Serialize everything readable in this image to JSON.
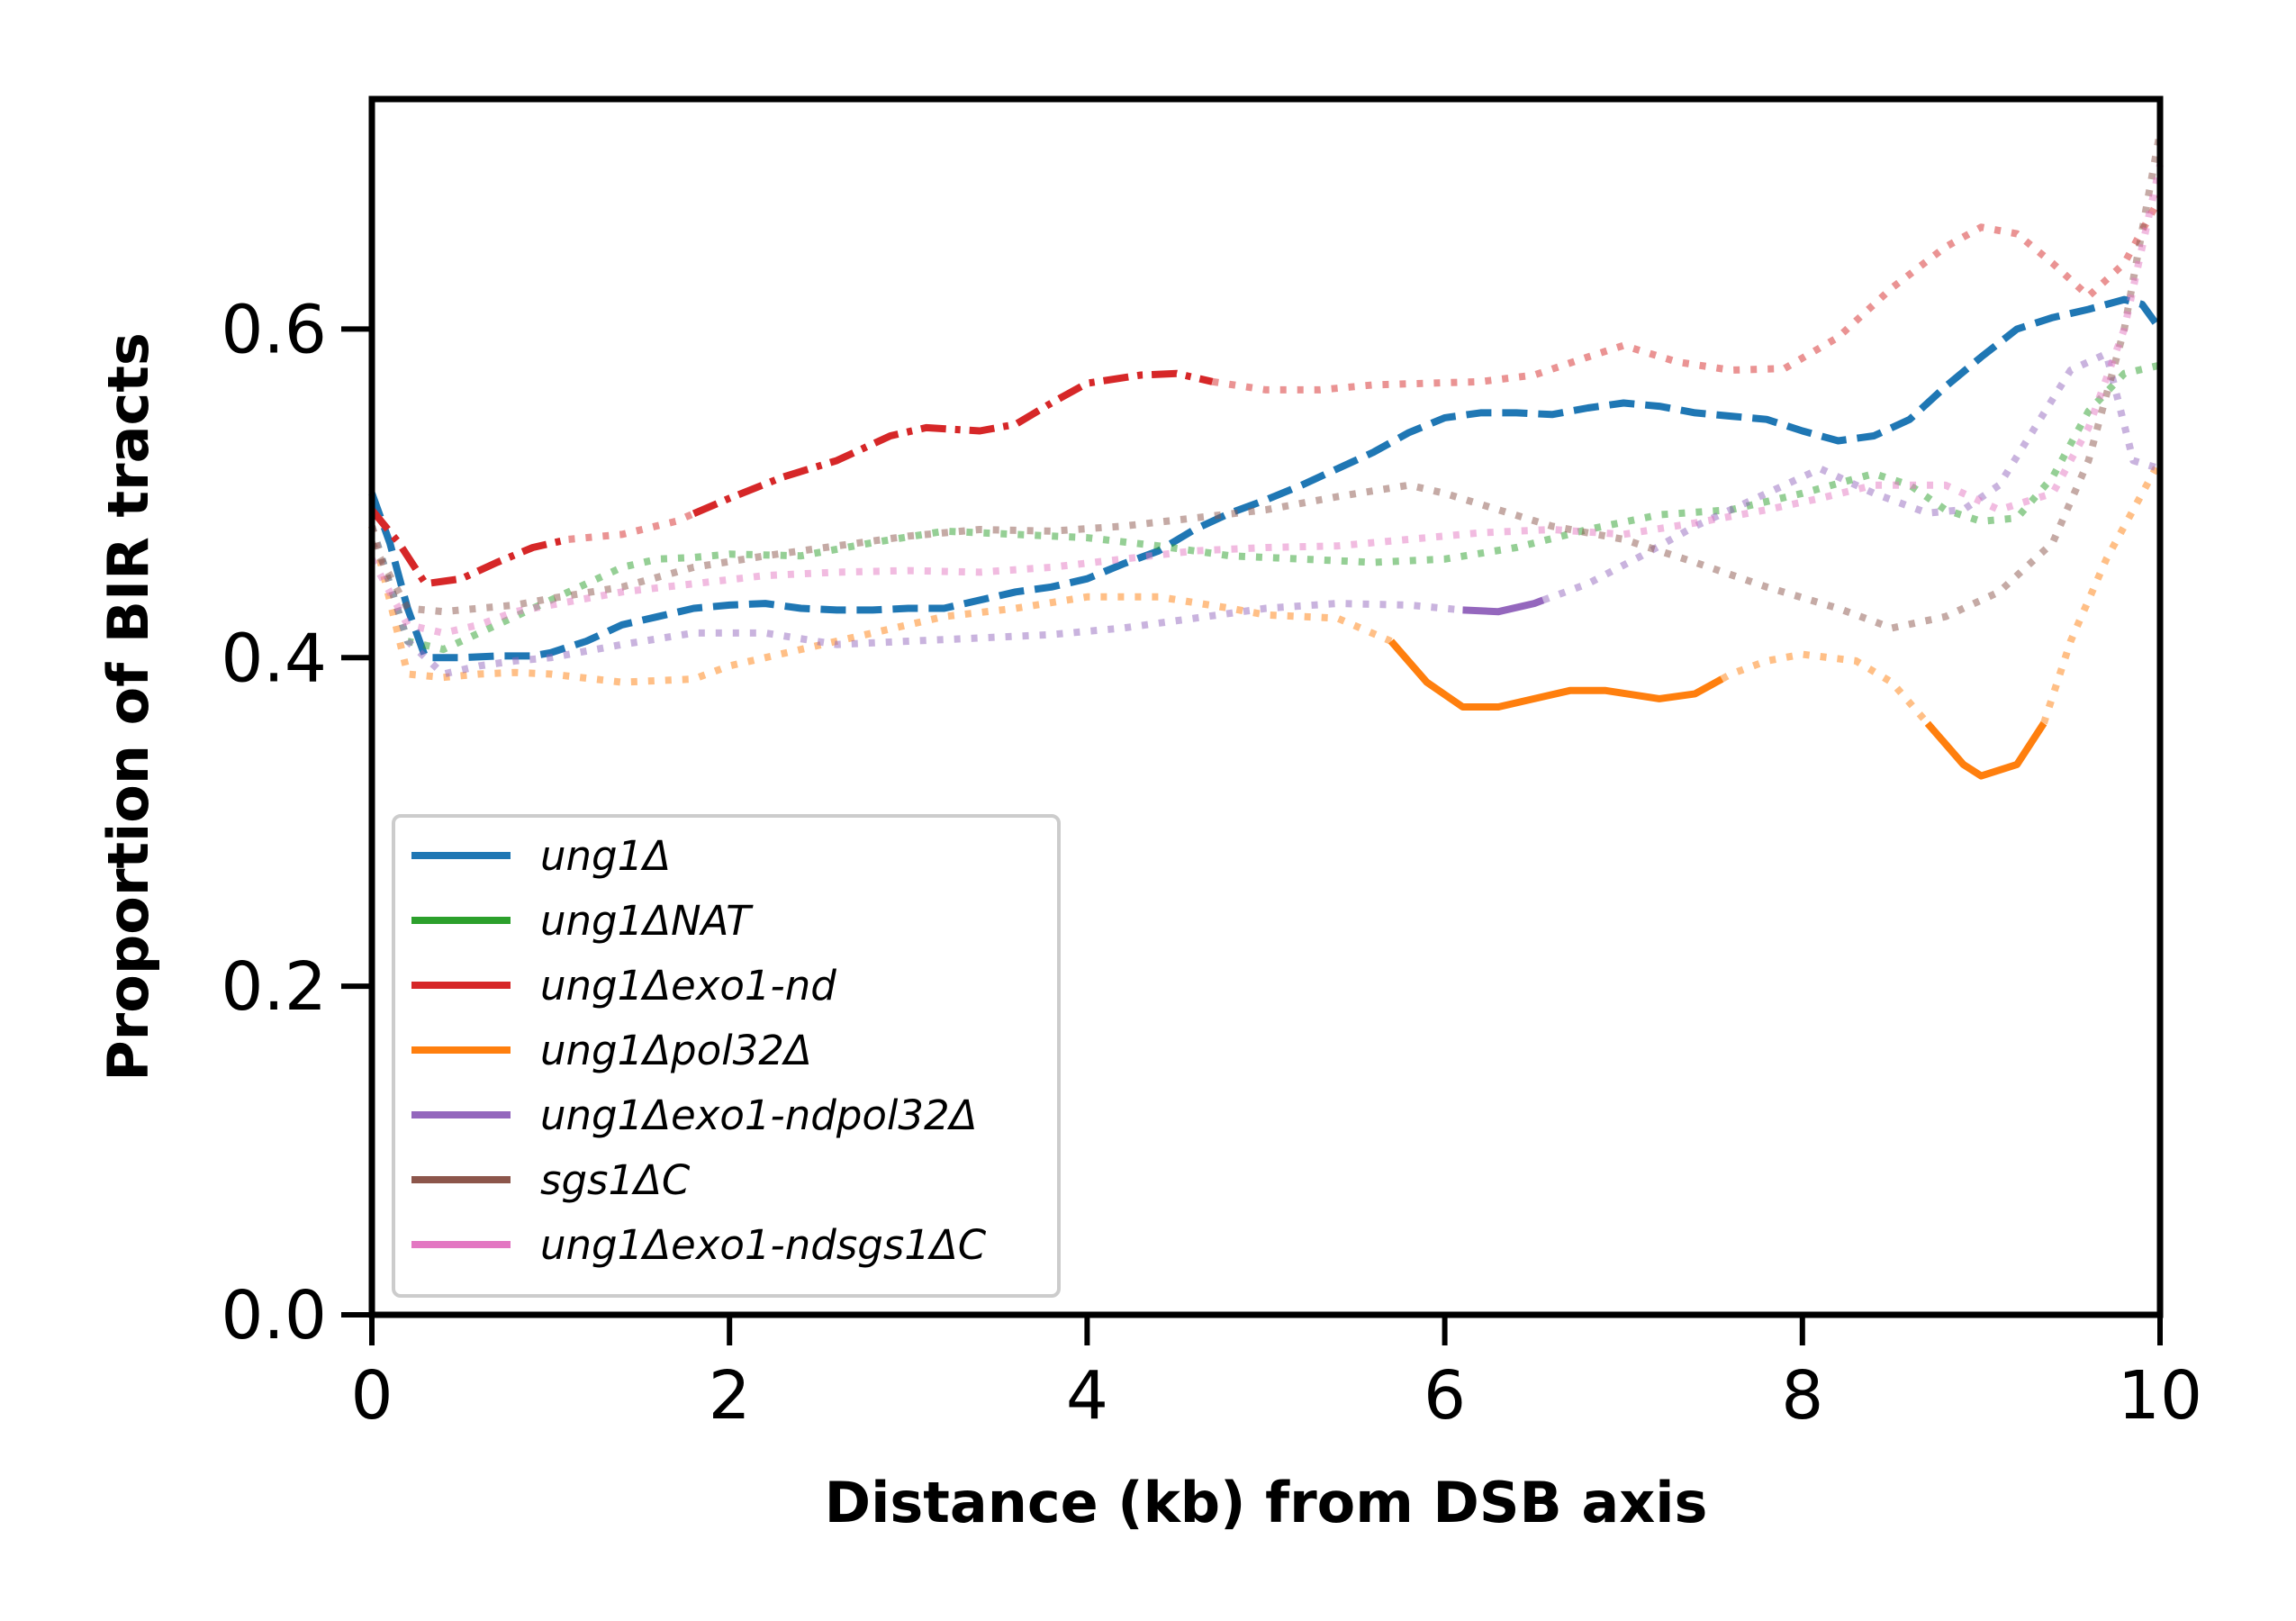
{
  "chart_data": {
    "type": "line",
    "title": "",
    "xlabel": "Distance (kb) from DSB axis",
    "ylabel": "Proportion of BIR tracts",
    "xlim": [
      0,
      10
    ],
    "ylim": [
      0,
      0.74
    ],
    "xticks": [
      0,
      2,
      4,
      6,
      8,
      10
    ],
    "xtick_labels": [
      "0",
      "2",
      "4",
      "6",
      "8",
      "10"
    ],
    "yticks": [
      0.0,
      0.2,
      0.4,
      0.6
    ],
    "ytick_labels": [
      "0.0",
      "0.2",
      "0.4",
      "0.6"
    ],
    "grid": false,
    "legend_position": "lower-left",
    "series": [
      {
        "name": "ung1Δ",
        "color": "#1f77b4",
        "x": [
          0,
          0.1,
          0.2,
          0.3,
          0.5,
          0.7,
          0.9,
          1.0,
          1.2,
          1.4,
          1.6,
          1.8,
          2.0,
          2.2,
          2.4,
          2.6,
          2.8,
          3.0,
          3.2,
          3.4,
          3.6,
          3.8,
          4.0,
          4.2,
          4.4,
          4.6,
          4.8,
          5.0,
          5.2,
          5.4,
          5.6,
          5.8,
          6.0,
          6.2,
          6.4,
          6.6,
          6.8,
          7.0,
          7.2,
          7.4,
          7.6,
          7.8,
          8.0,
          8.2,
          8.4,
          8.6,
          8.8,
          9.0,
          9.2,
          9.4,
          9.6,
          9.8,
          9.9,
          10.0
        ],
        "y": [
          0.5,
          0.47,
          0.43,
          0.4,
          0.4,
          0.401,
          0.401,
          0.403,
          0.41,
          0.42,
          0.425,
          0.43,
          0.432,
          0.433,
          0.43,
          0.429,
          0.429,
          0.43,
          0.43,
          0.435,
          0.44,
          0.443,
          0.448,
          0.457,
          0.465,
          0.478,
          0.488,
          0.496,
          0.505,
          0.515,
          0.525,
          0.537,
          0.546,
          0.549,
          0.549,
          0.548,
          0.552,
          0.555,
          0.553,
          0.549,
          0.547,
          0.545,
          0.538,
          0.532,
          0.535,
          0.545,
          0.565,
          0.583,
          0.6,
          0.607,
          0.612,
          0.618,
          0.615,
          0.6
        ],
        "segments": [
          {
            "range": [
              0,
              10
            ],
            "style": "dashed",
            "alpha": 1.0
          }
        ]
      },
      {
        "name": "ung1ΔNAT",
        "color": "#2ca02c",
        "x": [
          0,
          0.2,
          0.4,
          0.6,
          0.8,
          1.0,
          1.2,
          1.4,
          1.6,
          1.8,
          2.0,
          2.4,
          2.8,
          3.2,
          3.6,
          4.0,
          4.4,
          4.8,
          5.2,
          5.6,
          6.0,
          6.4,
          6.8,
          7.2,
          7.6,
          8.0,
          8.4,
          8.6,
          8.8,
          9.0,
          9.2,
          9.4,
          9.6,
          9.8,
          10.0
        ],
        "y": [
          0.48,
          0.41,
          0.405,
          0.415,
          0.425,
          0.435,
          0.445,
          0.455,
          0.46,
          0.461,
          0.463,
          0.462,
          0.47,
          0.477,
          0.475,
          0.473,
          0.468,
          0.462,
          0.46,
          0.458,
          0.46,
          0.467,
          0.478,
          0.487,
          0.49,
          0.5,
          0.512,
          0.505,
          0.49,
          0.483,
          0.485,
          0.51,
          0.55,
          0.573,
          0.578
        ],
        "segments": [
          {
            "range": [
              0,
              10
            ],
            "style": "dotted",
            "alpha": 0.5
          }
        ]
      },
      {
        "name": "ung1Δexo1-nd",
        "color": "#d62728",
        "x": [
          0,
          0.15,
          0.3,
          0.5,
          0.7,
          0.9,
          1.1,
          1.4,
          1.7,
          2.0,
          2.3,
          2.6,
          2.9,
          3.1,
          3.4,
          3.6,
          3.8,
          4.0,
          4.3,
          4.5,
          4.7,
          5.0,
          5.3,
          5.6,
          5.9,
          6.2,
          6.5,
          6.8,
          7.0,
          7.3,
          7.6,
          7.9,
          8.2,
          8.5,
          8.8,
          9.0,
          9.2,
          9.4,
          9.6,
          9.8,
          10.0
        ],
        "y": [
          0.49,
          0.47,
          0.445,
          0.448,
          0.458,
          0.467,
          0.472,
          0.475,
          0.483,
          0.497,
          0.51,
          0.52,
          0.535,
          0.54,
          0.538,
          0.542,
          0.555,
          0.567,
          0.572,
          0.573,
          0.568,
          0.563,
          0.563,
          0.566,
          0.567,
          0.568,
          0.572,
          0.583,
          0.59,
          0.58,
          0.575,
          0.576,
          0.595,
          0.625,
          0.65,
          0.662,
          0.658,
          0.64,
          0.62,
          0.64,
          0.68
        ],
        "segments": [
          {
            "range": [
              0,
              1.1
            ],
            "style": "dashdot",
            "alpha": 1.0
          },
          {
            "range": [
              1.1,
              1.8
            ],
            "style": "dotted",
            "alpha": 0.5
          },
          {
            "range": [
              1.8,
              4.7
            ],
            "style": "dashdot",
            "alpha": 1.0
          },
          {
            "range": [
              4.7,
              10
            ],
            "style": "dotted",
            "alpha": 0.5
          }
        ]
      },
      {
        "name": "ung1Δpol32Δ",
        "color": "#ff7f0e",
        "x": [
          0,
          0.2,
          0.4,
          0.6,
          0.8,
          1.0,
          1.4,
          1.8,
          2.0,
          2.4,
          2.8,
          3.2,
          3.6,
          4.0,
          4.4,
          4.8,
          5.0,
          5.4,
          5.7,
          5.9,
          6.1,
          6.3,
          6.5,
          6.7,
          6.9,
          7.2,
          7.4,
          7.6,
          7.8,
          8.0,
          8.3,
          8.5,
          8.7,
          8.9,
          9.0,
          9.2,
          9.35,
          9.5,
          9.7,
          10.0
        ],
        "y": [
          0.48,
          0.39,
          0.388,
          0.39,
          0.391,
          0.39,
          0.385,
          0.387,
          0.395,
          0.405,
          0.415,
          0.425,
          0.43,
          0.437,
          0.437,
          0.43,
          0.426,
          0.424,
          0.41,
          0.385,
          0.37,
          0.37,
          0.375,
          0.38,
          0.38,
          0.375,
          0.378,
          0.39,
          0.398,
          0.402,
          0.398,
          0.385,
          0.36,
          0.335,
          0.328,
          0.335,
          0.36,
          0.41,
          0.46,
          0.52
        ],
        "segments": [
          {
            "range": [
              0,
              5.7
            ],
            "style": "dotted",
            "alpha": 0.5
          },
          {
            "range": [
              5.7,
              7.55
            ],
            "style": "solid",
            "alpha": 1.0
          },
          {
            "range": [
              7.55,
              8.7
            ],
            "style": "dotted",
            "alpha": 0.5
          },
          {
            "range": [
              8.7,
              9.35
            ],
            "style": "solid",
            "alpha": 1.0
          },
          {
            "range": [
              9.35,
              10
            ],
            "style": "dotted",
            "alpha": 0.5
          }
        ]
      },
      {
        "name": "ung1Δexo1-ndpol32Δ",
        "color": "#9467bd",
        "x": [
          0,
          0.2,
          0.4,
          0.6,
          0.8,
          1.0,
          1.4,
          1.8,
          2.2,
          2.6,
          3.0,
          3.4,
          3.8,
          4.2,
          4.6,
          5.0,
          5.4,
          5.8,
          6.1,
          6.3,
          6.5,
          6.8,
          7.1,
          7.4,
          7.8,
          8.1,
          8.4,
          8.7,
          8.9,
          9.1,
          9.3,
          9.5,
          9.7,
          9.85,
          10.0
        ],
        "y": [
          0.48,
          0.41,
          0.39,
          0.395,
          0.398,
          0.4,
          0.408,
          0.415,
          0.415,
          0.408,
          0.41,
          0.412,
          0.414,
          0.418,
          0.424,
          0.43,
          0.433,
          0.432,
          0.429,
          0.428,
          0.433,
          0.445,
          0.462,
          0.48,
          0.5,
          0.515,
          0.5,
          0.488,
          0.49,
          0.505,
          0.54,
          0.575,
          0.585,
          0.52,
          0.515
        ],
        "segments": [
          {
            "range": [
              0,
              6.1
            ],
            "style": "dotted",
            "alpha": 0.5
          },
          {
            "range": [
              6.1,
              6.55
            ],
            "style": "solid",
            "alpha": 1.0
          },
          {
            "range": [
              6.55,
              10
            ],
            "style": "dotted",
            "alpha": 0.5
          }
        ]
      },
      {
        "name": "sgs1ΔC",
        "color": "#8c564b",
        "x": [
          0,
          0.2,
          0.4,
          0.6,
          0.8,
          1.0,
          1.4,
          1.8,
          2.2,
          2.6,
          3.0,
          3.4,
          3.8,
          4.2,
          4.6,
          5.0,
          5.4,
          5.8,
          6.0,
          6.3,
          6.6,
          7.0,
          7.4,
          7.8,
          8.2,
          8.5,
          8.8,
          9.1,
          9.4,
          9.6,
          9.8,
          10.0
        ],
        "y": [
          0.47,
          0.43,
          0.428,
          0.43,
          0.432,
          0.436,
          0.443,
          0.455,
          0.462,
          0.468,
          0.474,
          0.478,
          0.477,
          0.48,
          0.485,
          0.49,
          0.498,
          0.505,
          0.5,
          0.49,
          0.48,
          0.472,
          0.458,
          0.443,
          0.43,
          0.418,
          0.425,
          0.44,
          0.47,
          0.52,
          0.6,
          0.72
        ],
        "segments": [
          {
            "range": [
              0,
              10
            ],
            "style": "dotted",
            "alpha": 0.5
          }
        ]
      },
      {
        "name": "ung1Δexo1-ndsgs1ΔC",
        "color": "#e377c2",
        "x": [
          0,
          0.2,
          0.4,
          0.6,
          0.8,
          1.0,
          1.4,
          1.8,
          2.2,
          2.6,
          3.0,
          3.4,
          3.8,
          4.2,
          4.6,
          5.0,
          5.4,
          5.8,
          6.2,
          6.6,
          7.0,
          7.4,
          7.8,
          8.1,
          8.4,
          8.8,
          9.1,
          9.4,
          9.6,
          9.8,
          10.0
        ],
        "y": [
          0.46,
          0.42,
          0.415,
          0.42,
          0.428,
          0.432,
          0.44,
          0.445,
          0.45,
          0.452,
          0.453,
          0.452,
          0.455,
          0.46,
          0.465,
          0.467,
          0.468,
          0.472,
          0.476,
          0.478,
          0.475,
          0.482,
          0.49,
          0.497,
          0.505,
          0.505,
          0.49,
          0.5,
          0.54,
          0.6,
          0.7
        ],
        "segments": [
          {
            "range": [
              0,
              10
            ],
            "style": "dotted",
            "alpha": 0.5
          }
        ]
      }
    ]
  }
}
